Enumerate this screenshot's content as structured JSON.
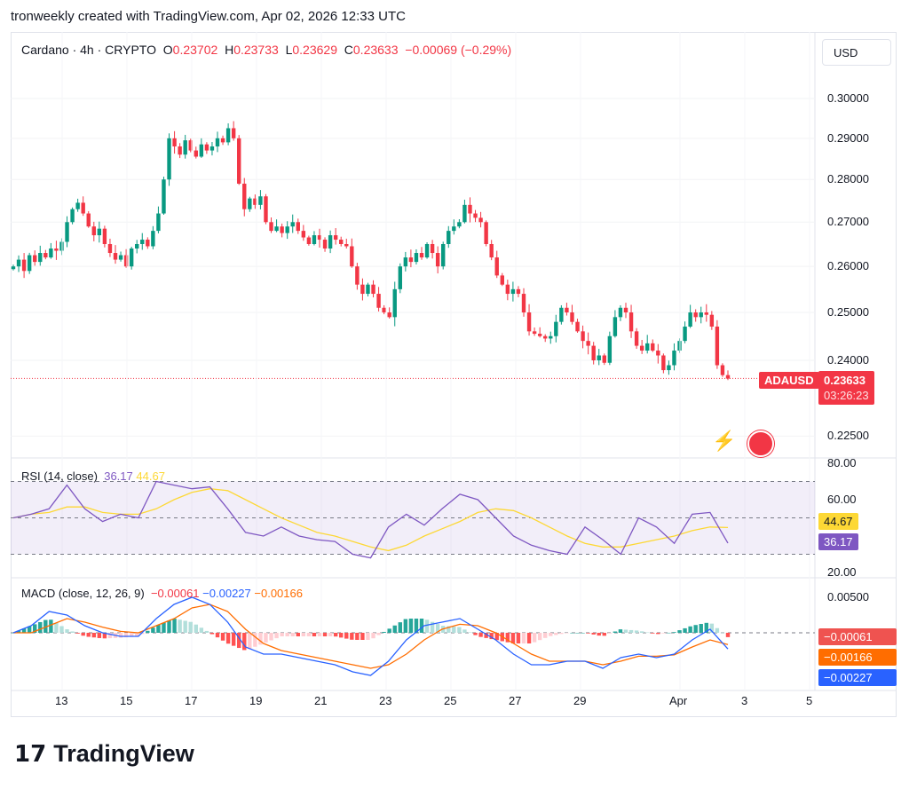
{
  "caption": "tronweekly created with TradingView.com, Apr 02, 2026 12:33 UTC",
  "legend": {
    "symbol": "Cardano · 4h · CRYPTO",
    "o_label": "O",
    "o": "0.23702",
    "h_label": "H",
    "h": "0.23733",
    "l_label": "L",
    "l": "0.23629",
    "c_label": "C",
    "c": "0.23633",
    "change": "−0.00069 (−0.29%)"
  },
  "currency_button": "USD",
  "price_axis": [
    "0.30000",
    "0.29000",
    "0.28000",
    "0.27000",
    "0.26000",
    "0.25000",
    "0.24000",
    "0.22500"
  ],
  "symbol_tag": "ADAUSD",
  "last_price": "0.23633",
  "countdown": "03:26:23",
  "rsi": {
    "title": "RSI (14, close)",
    "value": "36.17",
    "ma": "44.67",
    "axis": [
      "80.00",
      "60.00",
      "20.00"
    ]
  },
  "macd": {
    "title": "MACD (close, 12, 26, 9)",
    "hist": "−0.00061",
    "macd": "−0.00227",
    "signal": "−0.00166",
    "axis": [
      "0.00500"
    ]
  },
  "x_axis": [
    "13",
    "15",
    "17",
    "19",
    "21",
    "23",
    "25",
    "27",
    "29",
    "Apr",
    "3",
    "5"
  ],
  "colors": {
    "up": "#089981",
    "down": "#f23645",
    "rsi": "#7e57c2",
    "rsi_ma": "#fdd835",
    "macd": "#2962ff",
    "signal": "#ff6d00"
  },
  "brand": "TradingView",
  "chart_data": [
    {
      "type": "candlestick",
      "scale": "log",
      "ylim": [
        0.2185,
        0.305
      ],
      "x_ticks": [
        "13",
        "15",
        "17",
        "19",
        "21",
        "23",
        "25",
        "27",
        "29",
        "Apr",
        "3",
        "5"
      ],
      "close": [
        0.26,
        0.2615,
        0.259,
        0.2625,
        0.261,
        0.263,
        0.262,
        0.264,
        0.2635,
        0.2655,
        0.27,
        0.273,
        0.2745,
        0.272,
        0.269,
        0.267,
        0.2685,
        0.265,
        0.263,
        0.2615,
        0.2625,
        0.26,
        0.264,
        0.265,
        0.266,
        0.2645,
        0.268,
        0.272,
        0.28,
        0.29,
        0.288,
        0.286,
        0.2895,
        0.287,
        0.2855,
        0.2885,
        0.287,
        0.288,
        0.29,
        0.289,
        0.2925,
        0.29,
        0.279,
        0.273,
        0.2755,
        0.274,
        0.276,
        0.27,
        0.268,
        0.269,
        0.2675,
        0.269,
        0.27,
        0.268,
        0.2665,
        0.265,
        0.267,
        0.266,
        0.264,
        0.267,
        0.266,
        0.265,
        0.2645,
        0.26,
        0.256,
        0.254,
        0.256,
        0.254,
        0.251,
        0.25,
        0.249,
        0.255,
        0.26,
        0.262,
        0.261,
        0.263,
        0.262,
        0.265,
        0.263,
        0.26,
        0.265,
        0.268,
        0.269,
        0.27,
        0.274,
        0.272,
        0.271,
        0.27,
        0.265,
        0.262,
        0.258,
        0.256,
        0.254,
        0.255,
        0.254,
        0.25,
        0.246,
        0.2455,
        0.245,
        0.2445,
        0.245,
        0.248,
        0.251,
        0.25,
        0.248,
        0.246,
        0.244,
        0.243,
        0.24,
        0.241,
        0.2395,
        0.245,
        0.249,
        0.251,
        0.25,
        0.246,
        0.243,
        0.242,
        0.2435,
        0.242,
        0.241,
        0.238,
        0.239,
        0.242,
        0.244,
        0.247,
        0.25,
        0.249,
        0.25,
        0.2495,
        0.247,
        0.239,
        0.237,
        0.2363
      ],
      "last": 0.23633
    },
    {
      "type": "line",
      "name": "RSI (14, close)",
      "ylim": [
        20,
        80
      ],
      "bands": [
        30,
        50,
        70
      ],
      "rsi": [
        50,
        52,
        55,
        68,
        55,
        48,
        52,
        50,
        70,
        68,
        66,
        67,
        55,
        42,
        40,
        45,
        40,
        38,
        37,
        30,
        28,
        45,
        52,
        46,
        55,
        63,
        60,
        50,
        40,
        35,
        32,
        30,
        45,
        38,
        30,
        50,
        45,
        36,
        52,
        53,
        36.17
      ],
      "rsi_ma": [
        50,
        52,
        53,
        56,
        56,
        53,
        52,
        52,
        55,
        60,
        64,
        66,
        65,
        60,
        55,
        50,
        46,
        42,
        40,
        37,
        34,
        32,
        35,
        40,
        44,
        48,
        53,
        55,
        54,
        50,
        45,
        40,
        36,
        34,
        34,
        36,
        38,
        40,
        43,
        45,
        44.67
      ]
    },
    {
      "type": "line+bar",
      "name": "MACD (close, 12, 26, 9)",
      "ylim": [
        -0.0068,
        0.0065
      ],
      "macd": [
        0,
        0.001,
        0.003,
        0.0025,
        0.001,
        0,
        -0.0005,
        -0.0005,
        0.002,
        0.004,
        0.005,
        0.004,
        0.0015,
        -0.002,
        -0.003,
        -0.003,
        -0.0035,
        -0.004,
        -0.0045,
        -0.0055,
        -0.006,
        -0.004,
        -0.001,
        0.001,
        0.0015,
        0.002,
        0.0005,
        -0.001,
        -0.003,
        -0.0045,
        -0.0045,
        -0.004,
        -0.004,
        -0.005,
        -0.0035,
        -0.003,
        -0.0035,
        -0.003,
        -0.001,
        0.0005,
        -0.00227
      ],
      "signal": [
        0,
        0,
        0.001,
        0.002,
        0.0015,
        0.0008,
        0.0002,
        0,
        0.001,
        0.002,
        0.0035,
        0.004,
        0.003,
        0.0005,
        -0.0015,
        -0.0025,
        -0.003,
        -0.0035,
        -0.004,
        -0.0045,
        -0.005,
        -0.0045,
        -0.003,
        -0.001,
        0.0005,
        0.0012,
        0.001,
        0,
        -0.0015,
        -0.003,
        -0.004,
        -0.004,
        -0.004,
        -0.0045,
        -0.004,
        -0.0033,
        -0.0033,
        -0.0031,
        -0.002,
        -0.001,
        -0.00166
      ]
    }
  ]
}
